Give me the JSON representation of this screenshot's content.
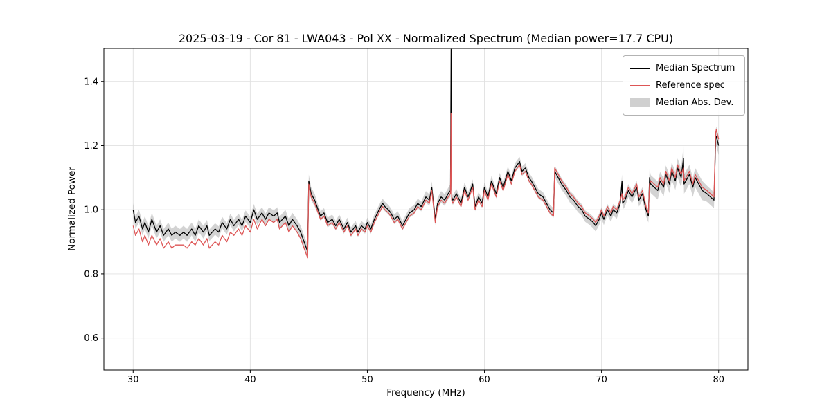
{
  "title": "2025-03-19 - Cor 81 - LWA043 - Pol XX - Normalized Spectrum (Median power=17.7 CPU)",
  "xlabel": "Frequency (MHz)",
  "ylabel": "Normalized Power",
  "legend": {
    "items": [
      {
        "label": "Median Spectrum",
        "color": "#000000",
        "type": "line"
      },
      {
        "label": "Reference spec",
        "color": "#dd5555",
        "type": "line"
      },
      {
        "label": "Median Abs. Dev.",
        "color": "#c0c0c0",
        "type": "patch"
      }
    ]
  },
  "chart_data": {
    "type": "line",
    "title": "2025-03-19 - Cor 81 - LWA043 - Pol XX - Normalized Spectrum (Median power=17.7 CPU)",
    "xlabel": "Frequency (MHz)",
    "ylabel": "Normalized Power",
    "xlim": [
      27.5,
      82.5
    ],
    "ylim": [
      0.5,
      1.503
    ],
    "xticks": [
      30,
      40,
      50,
      60,
      70,
      80
    ],
    "xtick_labels": [
      "30",
      "40",
      "50",
      "60",
      "70",
      "80"
    ],
    "yticks": [
      0.6,
      0.8,
      1.0,
      1.2,
      1.4
    ],
    "ytick_labels": [
      "0.6",
      "0.8",
      "1.0",
      "1.2",
      "1.4"
    ],
    "grid": true,
    "legend_position": "upper right",
    "x": [
      30.0,
      30.2,
      30.5,
      30.8,
      31.0,
      31.3,
      31.6,
      32.0,
      32.3,
      32.6,
      33.0,
      33.3,
      33.6,
      34.0,
      34.3,
      34.6,
      35.0,
      35.3,
      35.6,
      36.0,
      36.3,
      36.5,
      37.0,
      37.3,
      37.6,
      38.0,
      38.3,
      38.6,
      39.0,
      39.3,
      39.6,
      40.0,
      40.3,
      40.6,
      41.0,
      41.3,
      41.6,
      42.0,
      42.3,
      42.5,
      43.0,
      43.3,
      43.6,
      44.0,
      44.3,
      44.6,
      44.9,
      45.0,
      45.2,
      45.5,
      45.8,
      46.0,
      46.3,
      46.6,
      47.0,
      47.3,
      47.6,
      48.0,
      48.3,
      48.6,
      49.0,
      49.2,
      49.5,
      49.8,
      50.0,
      50.3,
      50.6,
      51.0,
      51.3,
      51.5,
      51.8,
      52.0,
      52.3,
      52.6,
      53.0,
      53.3,
      53.6,
      54.0,
      54.3,
      54.6,
      55.0,
      55.3,
      55.5,
      55.8,
      56.0,
      56.3,
      56.6,
      56.9,
      57.1,
      57.15,
      57.2,
      57.3,
      57.6,
      58.0,
      58.3,
      58.6,
      59.0,
      59.2,
      59.5,
      59.8,
      60.0,
      60.3,
      60.6,
      61.0,
      61.3,
      61.6,
      62.0,
      62.3,
      62.6,
      63.0,
      63.2,
      63.5,
      63.8,
      64.0,
      64.3,
      64.6,
      65.0,
      65.3,
      65.6,
      65.9,
      66.0,
      66.3,
      66.6,
      67.0,
      67.3,
      67.6,
      68.0,
      68.3,
      68.6,
      69.0,
      69.3,
      69.5,
      69.8,
      70.0,
      70.2,
      70.5,
      70.8,
      71.0,
      71.3,
      71.6,
      71.75,
      71.8,
      72.0,
      72.3,
      72.6,
      73.0,
      73.2,
      73.5,
      73.8,
      74.0,
      74.1,
      74.2,
      74.5,
      74.8,
      75.0,
      75.3,
      75.5,
      75.8,
      76.0,
      76.3,
      76.5,
      76.8,
      77.0,
      77.05,
      77.2,
      77.5,
      77.8,
      78.0,
      78.3,
      78.6,
      79.0,
      79.3,
      79.6,
      79.75,
      79.8,
      80.0
    ],
    "series": [
      {
        "name": "Median Spectrum",
        "color": "#000000",
        "values": [
          1.0,
          0.96,
          0.98,
          0.94,
          0.96,
          0.93,
          0.97,
          0.93,
          0.95,
          0.92,
          0.94,
          0.92,
          0.93,
          0.92,
          0.93,
          0.92,
          0.94,
          0.92,
          0.95,
          0.93,
          0.95,
          0.92,
          0.94,
          0.93,
          0.96,
          0.94,
          0.97,
          0.95,
          0.97,
          0.95,
          0.98,
          0.96,
          1.0,
          0.97,
          0.99,
          0.97,
          0.99,
          0.98,
          0.99,
          0.96,
          0.98,
          0.95,
          0.97,
          0.95,
          0.93,
          0.9,
          0.87,
          1.09,
          1.05,
          1.03,
          1.0,
          0.98,
          0.99,
          0.96,
          0.97,
          0.95,
          0.97,
          0.94,
          0.96,
          0.93,
          0.95,
          0.93,
          0.95,
          0.94,
          0.96,
          0.94,
          0.97,
          1.0,
          1.02,
          1.01,
          1.0,
          0.99,
          0.97,
          0.98,
          0.95,
          0.97,
          0.99,
          1.0,
          1.02,
          1.01,
          1.04,
          1.03,
          1.07,
          0.97,
          1.02,
          1.04,
          1.03,
          1.05,
          1.06,
          1.5,
          1.04,
          1.03,
          1.05,
          1.02,
          1.07,
          1.04,
          1.08,
          1.01,
          1.04,
          1.02,
          1.07,
          1.04,
          1.09,
          1.05,
          1.1,
          1.07,
          1.12,
          1.09,
          1.13,
          1.15,
          1.12,
          1.13,
          1.1,
          1.09,
          1.07,
          1.05,
          1.04,
          1.02,
          1.0,
          0.99,
          1.12,
          1.1,
          1.08,
          1.06,
          1.04,
          1.03,
          1.01,
          1.0,
          0.98,
          0.97,
          0.96,
          0.95,
          0.97,
          0.99,
          0.97,
          1.0,
          0.98,
          1.0,
          0.99,
          1.02,
          1.09,
          1.02,
          1.03,
          1.06,
          1.04,
          1.07,
          1.03,
          1.05,
          1.0,
          0.98,
          1.1,
          1.08,
          1.07,
          1.06,
          1.09,
          1.07,
          1.11,
          1.08,
          1.12,
          1.09,
          1.13,
          1.1,
          1.16,
          1.08,
          1.09,
          1.11,
          1.07,
          1.1,
          1.08,
          1.06,
          1.05,
          1.04,
          1.03,
          1.22,
          1.23,
          1.2
        ]
      },
      {
        "name": "Reference spec",
        "color": "#dd5555",
        "values": [
          0.95,
          0.92,
          0.94,
          0.9,
          0.92,
          0.89,
          0.92,
          0.89,
          0.91,
          0.88,
          0.9,
          0.88,
          0.89,
          0.89,
          0.89,
          0.88,
          0.9,
          0.89,
          0.91,
          0.89,
          0.91,
          0.88,
          0.9,
          0.89,
          0.92,
          0.9,
          0.93,
          0.92,
          0.94,
          0.92,
          0.95,
          0.93,
          0.97,
          0.94,
          0.97,
          0.95,
          0.97,
          0.96,
          0.97,
          0.94,
          0.96,
          0.93,
          0.95,
          0.93,
          0.91,
          0.88,
          0.85,
          1.08,
          1.04,
          1.02,
          0.99,
          0.97,
          0.98,
          0.95,
          0.96,
          0.94,
          0.96,
          0.93,
          0.95,
          0.92,
          0.94,
          0.92,
          0.94,
          0.93,
          0.95,
          0.93,
          0.96,
          0.99,
          1.01,
          1.0,
          0.99,
          0.98,
          0.96,
          0.97,
          0.94,
          0.96,
          0.98,
          0.99,
          1.01,
          1.0,
          1.03,
          1.02,
          1.06,
          0.96,
          1.01,
          1.03,
          1.02,
          1.04,
          1.05,
          1.3,
          1.03,
          1.02,
          1.04,
          1.01,
          1.06,
          1.03,
          1.07,
          1.0,
          1.03,
          1.01,
          1.06,
          1.03,
          1.08,
          1.04,
          1.09,
          1.06,
          1.11,
          1.08,
          1.12,
          1.14,
          1.11,
          1.12,
          1.09,
          1.08,
          1.06,
          1.04,
          1.03,
          1.01,
          0.99,
          0.98,
          1.13,
          1.11,
          1.09,
          1.07,
          1.05,
          1.04,
          1.02,
          1.01,
          0.99,
          0.98,
          0.97,
          0.96,
          0.98,
          1.0,
          0.98,
          1.01,
          0.99,
          1.01,
          1.0,
          1.03,
          1.05,
          1.03,
          1.04,
          1.07,
          1.05,
          1.08,
          1.04,
          1.06,
          1.01,
          0.99,
          1.08,
          1.09,
          1.08,
          1.07,
          1.1,
          1.08,
          1.12,
          1.09,
          1.13,
          1.1,
          1.14,
          1.11,
          1.13,
          1.09,
          1.1,
          1.12,
          1.08,
          1.11,
          1.09,
          1.07,
          1.06,
          1.05,
          1.04,
          1.24,
          1.25,
          1.22
        ]
      }
    ],
    "band": {
      "name": "Median Abs. Dev.",
      "color": "#9e9e9e",
      "opacity": 0.45,
      "half_width": [
        0.02,
        0.02,
        0.02,
        0.02,
        0.02,
        0.02,
        0.02,
        0.02,
        0.02,
        0.02,
        0.02,
        0.02,
        0.02,
        0.02,
        0.02,
        0.02,
        0.02,
        0.02,
        0.02,
        0.02,
        0.018,
        0.018,
        0.018,
        0.018,
        0.018,
        0.018,
        0.018,
        0.018,
        0.018,
        0.018,
        0.018,
        0.018,
        0.018,
        0.018,
        0.018,
        0.018,
        0.018,
        0.018,
        0.018,
        0.018,
        0.02,
        0.02,
        0.02,
        0.02,
        0.02,
        0.02,
        0.02,
        0.02,
        0.02,
        0.02,
        0.015,
        0.015,
        0.015,
        0.015,
        0.015,
        0.015,
        0.015,
        0.015,
        0.015,
        0.015,
        0.015,
        0.015,
        0.015,
        0.015,
        0.015,
        0.015,
        0.015,
        0.015,
        0.015,
        0.015,
        0.015,
        0.015,
        0.015,
        0.015,
        0.015,
        0.015,
        0.015,
        0.015,
        0.015,
        0.015,
        0.018,
        0.018,
        0.018,
        0.018,
        0.018,
        0.018,
        0.018,
        0.018,
        0.02,
        0.02,
        0.015,
        0.015,
        0.015,
        0.015,
        0.015,
        0.015,
        0.015,
        0.015,
        0.015,
        0.015,
        0.015,
        0.015,
        0.015,
        0.015,
        0.015,
        0.015,
        0.015,
        0.015,
        0.015,
        0.015,
        0.015,
        0.015,
        0.015,
        0.015,
        0.015,
        0.015,
        0.015,
        0.015,
        0.015,
        0.015,
        0.018,
        0.018,
        0.018,
        0.018,
        0.018,
        0.018,
        0.018,
        0.018,
        0.018,
        0.018,
        0.018,
        0.018,
        0.018,
        0.018,
        0.018,
        0.018,
        0.018,
        0.018,
        0.018,
        0.018,
        0.02,
        0.02,
        0.02,
        0.02,
        0.02,
        0.02,
        0.02,
        0.02,
        0.02,
        0.02,
        0.028,
        0.028,
        0.028,
        0.028,
        0.028,
        0.028,
        0.028,
        0.028,
        0.028,
        0.028,
        0.03,
        0.03,
        0.04,
        0.03,
        0.03,
        0.03,
        0.03,
        0.03,
        0.03,
        0.03,
        0.025,
        0.025,
        0.025,
        0.03,
        0.03,
        0.03
      ]
    }
  }
}
